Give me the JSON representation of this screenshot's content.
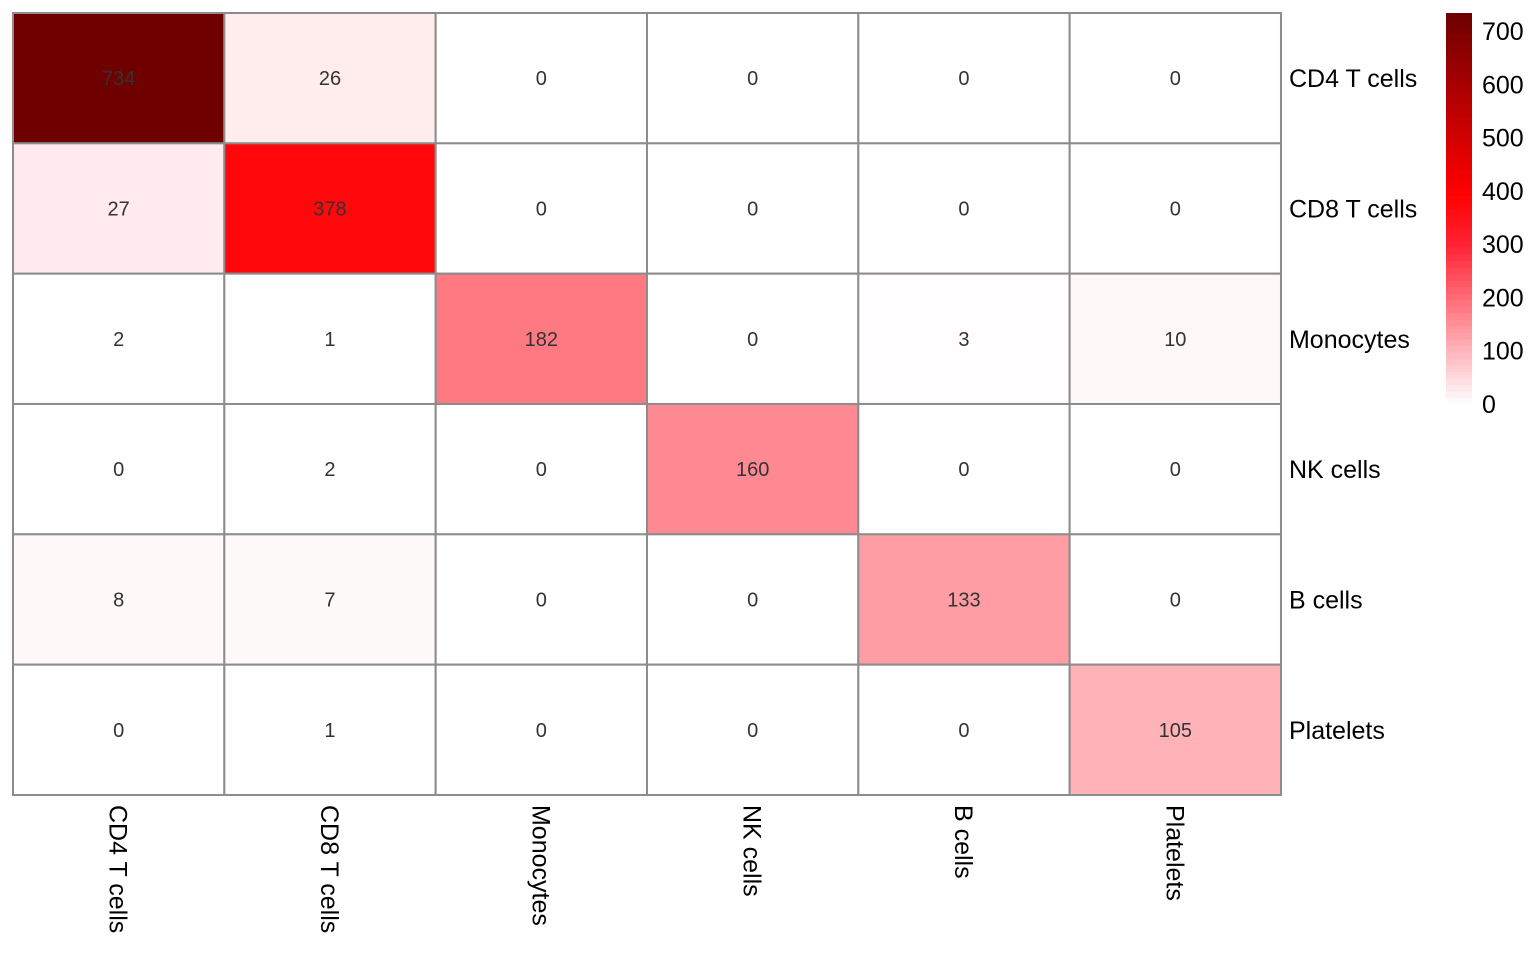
{
  "chart_data": {
    "type": "heatmap",
    "title": "",
    "rows": [
      "CD4 T cells",
      "CD8 T cells",
      "Monocytes",
      "NK cells",
      "B cells",
      "Platelets"
    ],
    "columns": [
      "CD4 T cells",
      "CD8 T cells",
      "Monocytes",
      "NK cells",
      "B cells",
      "Platelets"
    ],
    "values": [
      [
        734,
        26,
        0,
        0,
        0,
        0
      ],
      [
        27,
        378,
        0,
        0,
        0,
        0
      ],
      [
        2,
        1,
        182,
        0,
        3,
        10
      ],
      [
        0,
        2,
        0,
        160,
        0,
        0
      ],
      [
        8,
        7,
        0,
        0,
        133,
        0
      ],
      [
        0,
        1,
        0,
        0,
        0,
        105
      ]
    ],
    "color_scale": {
      "min": 0,
      "max": 734,
      "stops": [
        {
          "value": 0,
          "color": "#ffffff"
        },
        {
          "value": 300,
          "color": "#ff2233"
        },
        {
          "value": 400,
          "color": "#ff0000"
        },
        {
          "value": 734,
          "color": "#6e0000"
        }
      ],
      "ticks": [
        0,
        100,
        200,
        300,
        400,
        500,
        600,
        700
      ]
    },
    "grid_color": "#8c8c8c",
    "legend_placement": "right"
  }
}
